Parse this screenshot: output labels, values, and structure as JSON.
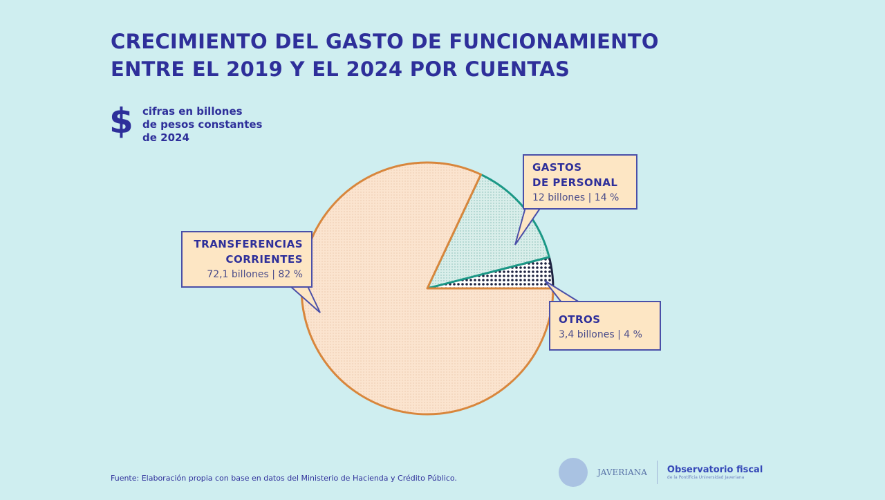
{
  "title_lines": [
    "CRECIMIENTO DEL GASTO DE FUNCIONAMIENTO",
    "ENTRE EL 2019 Y EL 2024 POR CUENTAS"
  ],
  "unit_icon": "$",
  "unit_lines": [
    "cifras en billones",
    "de pesos constantes",
    "de 2024"
  ],
  "chart_data": {
    "type": "pie",
    "title": "CRECIMIENTO DEL GASTO DE FUNCIONAMIENTO ENTRE EL 2019 Y EL 2024 POR CUENTAS",
    "unit": "billones de pesos constantes de 2024",
    "slices": [
      {
        "name_lines": [
          "OTROS"
        ],
        "value": 3.4,
        "percent": 4,
        "label": "3,4 billones | 4 %",
        "fill": "#1d2240",
        "stroke": "#1d2240"
      },
      {
        "name_lines": [
          "GASTOS",
          "DE PERSONAL"
        ],
        "value": 12,
        "percent": 14,
        "label": "12 billones | 14 %",
        "fill": "#d9eeea",
        "stroke": "#1b9886"
      },
      {
        "name_lines": [
          "TRANSFERENCIAS",
          "CORRIENTES"
        ],
        "value": 72.1,
        "percent": 82,
        "label": "72,1 billones | 82 %",
        "fill": "#fbe4cf",
        "stroke": "#d8863c"
      }
    ]
  },
  "source": "Fuente: Elaboración propia con base en datos del Ministerio de Hacienda y Crédito Público.",
  "logos": {
    "javeriana": "JAVERIANA",
    "observatorio": "Observatorio fiscal",
    "observatorio_sub": "de la Pontificia Universidad Javeriana"
  }
}
